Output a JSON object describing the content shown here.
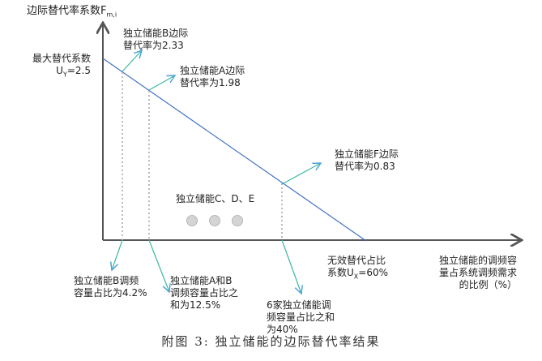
{
  "y_axis_label": "边际替代率系数F",
  "y_axis_sub": "m,i",
  "x_axis_label": [
    "独立储能的调频容",
    "量占系统调频需求",
    "的比例（%）"
  ],
  "max_label": [
    "最大替代系数",
    "U",
    "Y",
    "=2.5"
  ],
  "invalid_label": [
    "无效替代占比",
    "系数U",
    "X",
    "=60%"
  ],
  "annotations": {
    "b_rate": [
      "独立储能B边际",
      "替代率为2.33"
    ],
    "a_rate": [
      "独立储能A边际",
      "替代率为1.98"
    ],
    "f_rate": [
      "独立储能F边际",
      "替代率为0.83"
    ],
    "cde": "独立储能C、D、E",
    "b_share": [
      "独立储能B调频",
      "容量占比为4.2%"
    ],
    "ab_share": [
      "独立储能A和B",
      "调频容量占比之",
      "和为12.5%"
    ],
    "six_share": [
      "6家独立储能调",
      "频容量占比之和",
      "为40%"
    ]
  },
  "caption": "附图 3:  独立储能的边际替代率结果",
  "colors": {
    "line": "#4472c4",
    "callout_arrow": "#3cb9a0",
    "axis": "#555555",
    "dots": "#d0d0d0"
  }
}
